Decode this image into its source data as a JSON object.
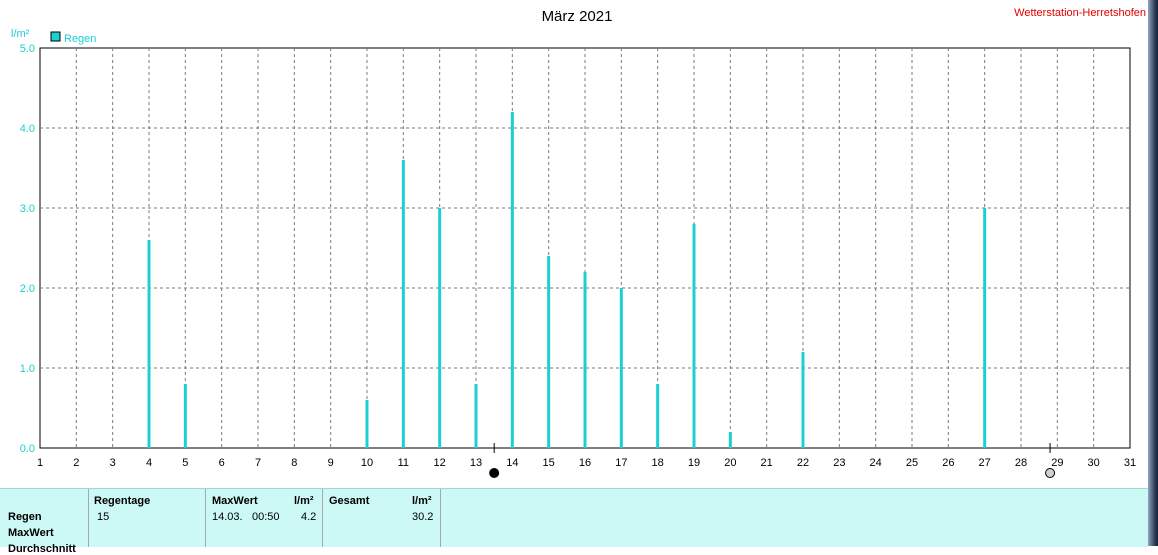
{
  "header": {
    "title": "März 2021",
    "station": "Wetterstation-Herretshofen",
    "unit": "l/m²"
  },
  "legend": {
    "label": "Regen",
    "color": "#1ccfd3"
  },
  "chart_data": {
    "type": "bar",
    "title": "März 2021",
    "ylabel": "l/m²",
    "xlabel": "",
    "x": [
      1,
      2,
      3,
      4,
      5,
      6,
      7,
      8,
      9,
      10,
      11,
      12,
      13,
      14,
      15,
      16,
      17,
      18,
      19,
      20,
      21,
      22,
      23,
      24,
      25,
      26,
      27,
      28,
      29,
      30,
      31
    ],
    "xlim": [
      1,
      31
    ],
    "ylim": [
      0,
      5
    ],
    "y_ticks": [
      "0.0",
      "1.0",
      "2.0",
      "3.0",
      "4.0",
      "5.0"
    ],
    "grid": true,
    "legend_position": "top-left",
    "series": [
      {
        "name": "Regen",
        "color": "#1ccfd3",
        "points": [
          {
            "x": 4,
            "y": 2.6
          },
          {
            "x": 5,
            "y": 0.8
          },
          {
            "x": 10,
            "y": 0.6
          },
          {
            "x": 11,
            "y": 3.6
          },
          {
            "x": 12,
            "y": 3.0
          },
          {
            "x": 13,
            "y": 0.8
          },
          {
            "x": 14,
            "y": 4.2
          },
          {
            "x": 15,
            "y": 2.4
          },
          {
            "x": 16,
            "y": 2.2
          },
          {
            "x": 17,
            "y": 2.0
          },
          {
            "x": 18,
            "y": 0.8
          },
          {
            "x": 19,
            "y": 2.8
          },
          {
            "x": 20,
            "y": 0.2
          },
          {
            "x": 22,
            "y": 1.2
          },
          {
            "x": 27,
            "y": 3.0
          }
        ]
      }
    ],
    "moon_phases": [
      {
        "x": 13.5,
        "phase": "new-moon"
      },
      {
        "x": 28.8,
        "phase": "full-moon"
      }
    ]
  },
  "stats": {
    "row_labels": [
      "Regen",
      "MaxWert",
      "Durchschnitt"
    ],
    "regentage_header": "Regentage",
    "regentage_value": "15",
    "maxwert_header": "MaxWert",
    "maxwert_unit": "l/m²",
    "maxwert_date": "14.03.",
    "maxwert_time": "00:50",
    "maxwert_value": "4.2",
    "gesamt_header": "Gesamt",
    "gesamt_unit": "l/m²",
    "gesamt_value": "30.2"
  }
}
